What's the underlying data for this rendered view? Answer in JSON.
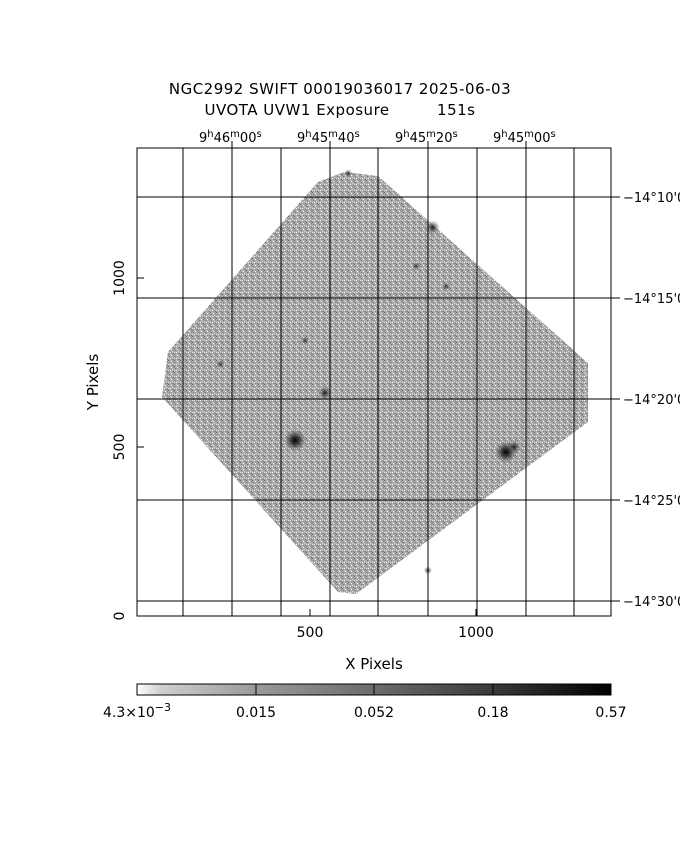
{
  "title_line1": "NGC2992 SWIFT 00019036017 2025-06-03",
  "title_line2": "UVOTA UVW1 Exposure         151s",
  "x_axis": {
    "label": "X Pixels",
    "ticks": [
      500,
      1000
    ],
    "tick_labels": [
      "500",
      "1000"
    ],
    "range": [
      0,
      1400
    ]
  },
  "y_axis": {
    "label": "Y Pixels",
    "ticks": [
      0,
      500,
      1000
    ],
    "tick_labels": [
      "0",
      "500",
      "1000"
    ],
    "range": [
      0,
      1400
    ]
  },
  "ra_ticks": [
    "9h46m00s",
    "9h45m40s",
    "9h45m20s",
    "9h45m00s"
  ],
  "ra_labels": [
    {
      "h": "9",
      "m": "46",
      "s": "00"
    },
    {
      "h": "9",
      "m": "45",
      "s": "40"
    },
    {
      "h": "9",
      "m": "45",
      "s": "20"
    },
    {
      "h": "9",
      "m": "45",
      "s": "00"
    }
  ],
  "dec_labels": [
    "−14°10'0",
    "−14°15'0",
    "−14°20'0",
    "−14°25'0",
    "−14°30'0"
  ],
  "colorbar": {
    "labels": [
      "4.3×10⁻³",
      "0.015",
      "0.052",
      "0.18",
      "0.57"
    ],
    "label_first_base": "4.3×10",
    "label_first_exp": "−3",
    "scale": "log",
    "colors": [
      "#ffffff",
      "#000000"
    ]
  },
  "image": {
    "description": "",
    "background_color": "#9a9a9a",
    "sources": [
      {
        "x": 455,
        "y": 520,
        "size": "large"
      },
      {
        "x": 1090,
        "y": 485,
        "size": "large"
      },
      {
        "x": 1115,
        "y": 500,
        "size": "medium"
      },
      {
        "x": 545,
        "y": 660,
        "size": "medium"
      },
      {
        "x": 870,
        "y": 1150,
        "size": "medium"
      },
      {
        "x": 230,
        "y": 745,
        "size": "small"
      },
      {
        "x": 485,
        "y": 815,
        "size": "small"
      },
      {
        "x": 910,
        "y": 975,
        "size": "small"
      },
      {
        "x": 820,
        "y": 1035,
        "size": "small"
      },
      {
        "x": 855,
        "y": 135,
        "size": "small"
      },
      {
        "x": 615,
        "y": 1310,
        "size": "small"
      }
    ]
  }
}
